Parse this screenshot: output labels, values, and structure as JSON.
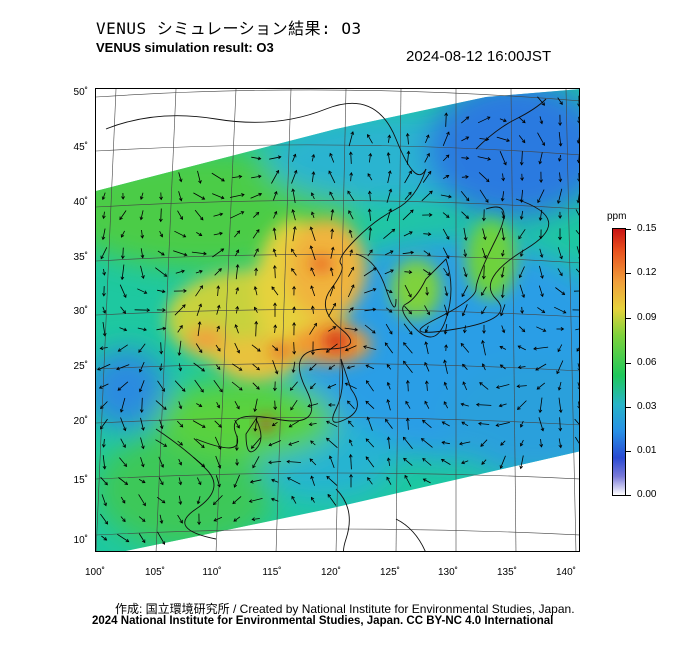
{
  "header": {
    "title_jp": "VENUS シミュレーション結果: O3",
    "title_en": "VENUS simulation result: O3",
    "timestamp": "2024-08-12 16:00JST"
  },
  "map": {
    "lat_labels": [
      "50˚",
      "45˚",
      "40˚",
      "35˚",
      "30˚",
      "25˚",
      "20˚",
      "15˚",
      "10˚"
    ],
    "lon_labels": [
      "100˚",
      "105˚",
      "110˚",
      "115˚",
      "120˚",
      "125˚",
      "130˚",
      "135˚",
      "140˚"
    ],
    "region": "East Asia",
    "field": "O3 concentration with wind vectors"
  },
  "colorbar": {
    "unit": "ppm",
    "ticks": [
      "0.15",
      "0.12",
      "0.09",
      "0.06",
      "0.03",
      "0.01",
      "0.00"
    ],
    "colors": [
      "#c81414",
      "#e8501e",
      "#f0a03c",
      "#e6d23c",
      "#7ed23c",
      "#1ec85a",
      "#28b4c8",
      "#2890e6",
      "#2a4ad2",
      "#ffffff"
    ]
  },
  "footer": {
    "credit_1": "作成: 国立環境研究所 / Created by National Institute for Environmental Studies, Japan.",
    "credit_2": "2024 National Institute for Environmental Studies, Japan. CC BY-NC 4.0 International"
  }
}
